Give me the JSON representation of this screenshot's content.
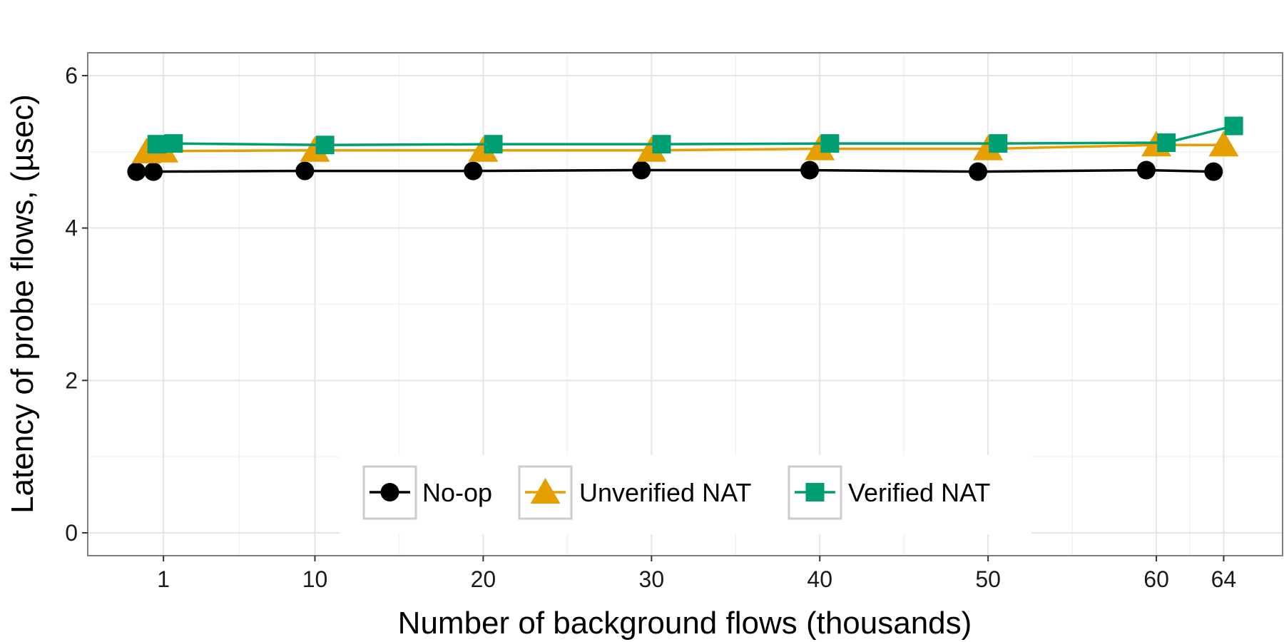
{
  "chart_data": {
    "type": "line",
    "title": "",
    "xlabel": "Number of background flows (thousands)",
    "ylabel": "Latency of probe flows, (µsec)",
    "xlim": [
      -3.5,
      67.5
    ],
    "ylim": [
      -0.3,
      6.3
    ],
    "x_ticks": [
      1,
      10,
      20,
      30,
      40,
      50,
      60,
      64
    ],
    "y_ticks": [
      0,
      2,
      4,
      6
    ],
    "grid": true,
    "legend_position": "bottom-center",
    "series": [
      {
        "name": "No-op",
        "color": "#000000",
        "marker": "circle",
        "x": [
          -0.6,
          0.4,
          9.4,
          19.4,
          29.4,
          39.4,
          49.4,
          59.4,
          63.4
        ],
        "y": [
          4.74,
          4.74,
          4.75,
          4.75,
          4.76,
          4.76,
          4.74,
          4.76,
          4.74
        ]
      },
      {
        "name": "Unverified NAT",
        "color": "#E69F00",
        "marker": "triangle",
        "x": [
          0.0,
          1.0,
          10.0,
          20.0,
          30.0,
          40.0,
          50.0,
          60.0,
          64.0
        ],
        "y": [
          5.0,
          5.01,
          5.02,
          5.02,
          5.02,
          5.04,
          5.04,
          5.09,
          5.09
        ]
      },
      {
        "name": "Verified NAT",
        "color": "#009E73",
        "marker": "square",
        "x": [
          0.6,
          1.6,
          10.6,
          20.6,
          30.6,
          40.6,
          50.6,
          60.6,
          64.6
        ],
        "y": [
          5.1,
          5.11,
          5.09,
          5.1,
          5.1,
          5.11,
          5.11,
          5.12,
          5.34
        ]
      }
    ]
  }
}
